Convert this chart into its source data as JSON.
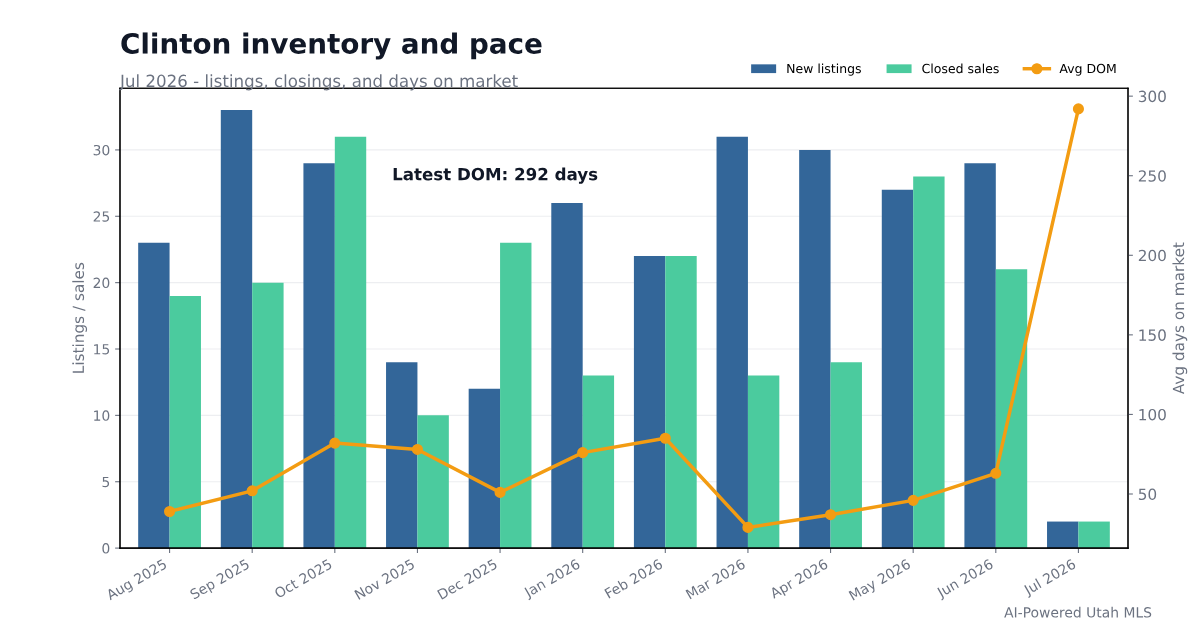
{
  "chart_data": {
    "type": "bar",
    "title": "Clinton inventory and pace",
    "subtitle": "Jul 2026 - listings, closings, and days on market",
    "ylabel": "Listings / sales",
    "y2label": "Avg days on market",
    "categories": [
      "Aug 2025",
      "Sep 2025",
      "Oct 2025",
      "Nov 2025",
      "Dec 2025",
      "Jan 2026",
      "Feb 2026",
      "Mar 2026",
      "Apr 2026",
      "May 2026",
      "Jun 2026",
      "Jul 2026"
    ],
    "series": [
      {
        "name": "New listings",
        "color": "#336699",
        "values": [
          23,
          33,
          29,
          14,
          12,
          26,
          22,
          31,
          30,
          27,
          29,
          2
        ]
      },
      {
        "name": "Closed sales",
        "color": "#4bcb9e",
        "values": [
          19,
          20,
          31,
          10,
          23,
          13,
          22,
          13,
          14,
          28,
          21,
          2
        ]
      },
      {
        "name": "Avg DOM",
        "type": "line",
        "axis": "y2",
        "color": "#f39c12",
        "marker": "circle",
        "values": [
          39,
          52,
          82,
          78,
          51,
          76,
          85,
          29,
          37,
          46,
          63,
          292
        ]
      }
    ],
    "ylim": [
      0,
      34.65
    ],
    "yticks": [
      0,
      5,
      10,
      15,
      20,
      25,
      30
    ],
    "y2lim": [
      16,
      305
    ],
    "y2ticks": [
      50,
      100,
      150,
      200,
      250,
      300
    ],
    "grid": "y",
    "legend": "top right",
    "annotations": [
      "Latest DOM: 292 days",
      "AI-Powered Utah MLS"
    ]
  }
}
